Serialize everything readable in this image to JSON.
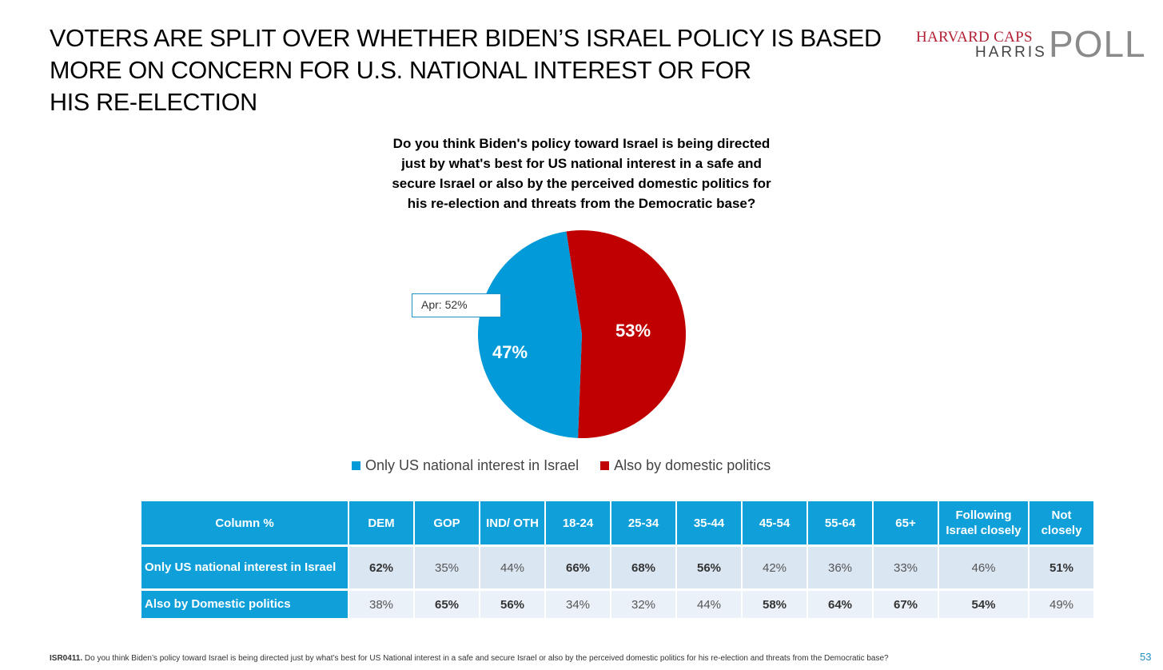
{
  "title_lines": [
    "VOTERS ARE SPLIT OVER WHETHER BIDEN’S ISRAEL POLICY IS BASED",
    "MORE ON CONCERN FOR U.S. NATIONAL INTEREST OR FOR",
    "HIS RE-ELECTION"
  ],
  "logo": {
    "line1": "HARVARD CAPS",
    "line2": "HARRIS",
    "line3": "POLL"
  },
  "question_lines": [
    "Do you think Biden's policy toward Israel is being directed",
    "just by what's best for US national interest in a safe and",
    "secure Israel or also by the perceived domestic politics for",
    "his re-election and threats from the Democratic base?"
  ],
  "colors": {
    "blue": "#029ad8",
    "red": "#c00000",
    "header_blue": "#0f9fd9"
  },
  "chart_data": {
    "type": "pie",
    "series": [
      {
        "name": "Only US national interest in Israel",
        "value": 47,
        "label": "47%",
        "color": "#029ad8"
      },
      {
        "name": "Also by domestic politics",
        "value": 53,
        "label": "53%",
        "color": "#c00000"
      }
    ],
    "annotation": "Apr: 52%",
    "legend_position": "bottom"
  },
  "table": {
    "corner": "Column %",
    "headers": [
      "DEM",
      "GOP",
      "IND/ OTH",
      "18-24",
      "25-34",
      "35-44",
      "45-54",
      "55-64",
      "65+",
      "Following Israel closely",
      "Not closely"
    ],
    "rows": [
      {
        "label": "Only US national interest in Israel",
        "values": [
          "62%",
          "35%",
          "44%",
          "66%",
          "68%",
          "56%",
          "42%",
          "36%",
          "33%",
          "46%",
          "51%"
        ],
        "bold": [
          true,
          false,
          false,
          true,
          true,
          true,
          false,
          false,
          false,
          false,
          true
        ]
      },
      {
        "label": "Also by Domestic politics",
        "values": [
          "38%",
          "65%",
          "56%",
          "34%",
          "32%",
          "44%",
          "58%",
          "64%",
          "67%",
          "54%",
          "49%"
        ],
        "bold": [
          false,
          true,
          true,
          false,
          false,
          false,
          true,
          true,
          true,
          true,
          false
        ]
      }
    ]
  },
  "footnote": {
    "code": "ISR0411.",
    "text": " Do you think Biden’s policy toward Israel is being directed just by what’s best for US National interest in a safe and secure Israel or also by the perceived domestic politics for his re-election and threats from the Democratic base?"
  },
  "page_number": "53"
}
